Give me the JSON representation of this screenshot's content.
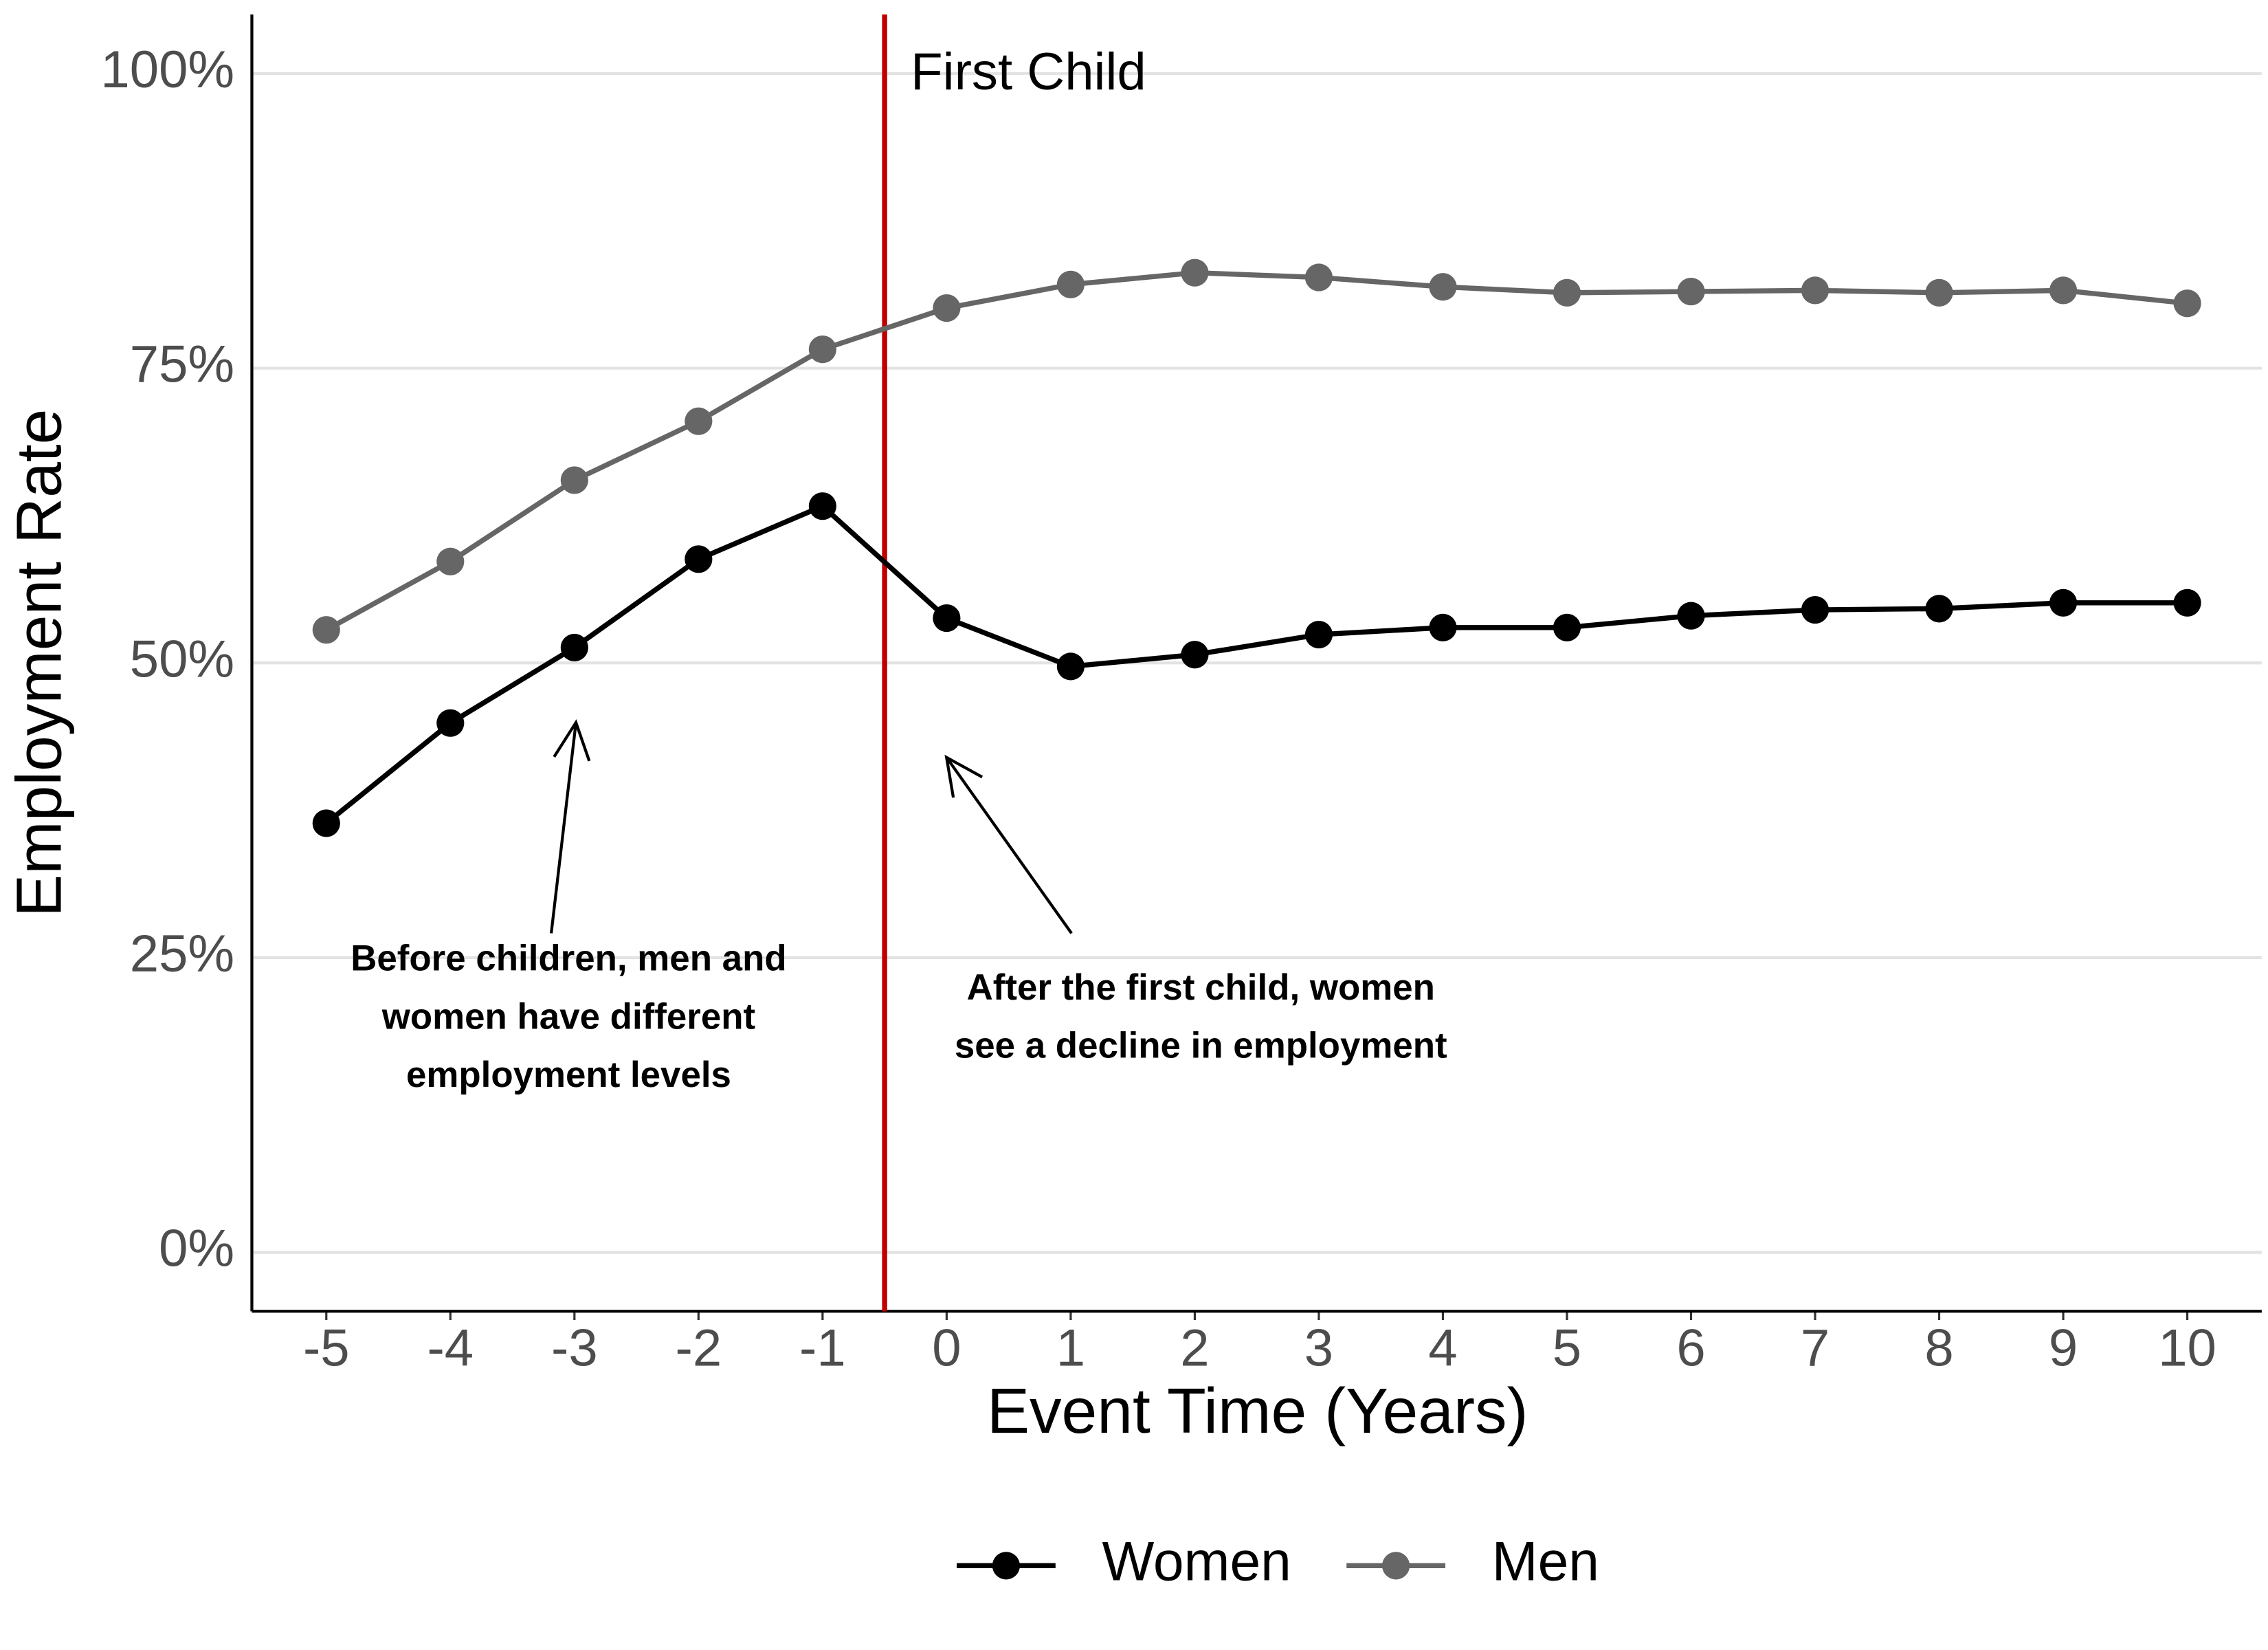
{
  "chart_data": {
    "type": "line",
    "x_label": "Event Time (Years)",
    "y_label": "Employment Rate",
    "x": [
      -5,
      -4,
      -3,
      -2,
      -1,
      0,
      1,
      2,
      3,
      4,
      5,
      6,
      7,
      8,
      9,
      10
    ],
    "series": [
      {
        "name": "Women",
        "color": "#000000",
        "values": [
          36.4,
          44.9,
          51.3,
          58.8,
          63.3,
          53.8,
          49.7,
          50.7,
          52.4,
          53.0,
          53.0,
          54.0,
          54.5,
          54.6,
          55.1,
          55.1
        ]
      },
      {
        "name": "Men",
        "color": "#666666",
        "values": [
          52.8,
          58.6,
          65.5,
          70.5,
          76.6,
          80.1,
          82.1,
          83.1,
          82.7,
          81.9,
          81.4,
          81.5,
          81.6,
          81.4,
          81.6,
          80.5
        ]
      }
    ],
    "xlim": [
      -5.6,
      10.6
    ],
    "ylim": [
      -5,
      105
    ],
    "xticks": [
      -5,
      -4,
      -3,
      -2,
      -1,
      0,
      1,
      2,
      3,
      4,
      5,
      6,
      7,
      8,
      9,
      10
    ],
    "yticks": [
      {
        "value": 0,
        "label": "0%"
      },
      {
        "value": 25,
        "label": "25%"
      },
      {
        "value": 50,
        "label": "50%"
      },
      {
        "value": 75,
        "label": "75%"
      },
      {
        "value": 100,
        "label": "100%"
      }
    ],
    "grid": true,
    "legend_position": "bottom",
    "vline": {
      "x": -0.5,
      "label": "First Child",
      "color": "#c00000"
    },
    "annotations": [
      {
        "lines": [
          "Before children, men and",
          "women have different",
          "employment levels"
        ]
      },
      {
        "lines": [
          "After the first child, women",
          "see a decline in employment"
        ]
      }
    ]
  }
}
